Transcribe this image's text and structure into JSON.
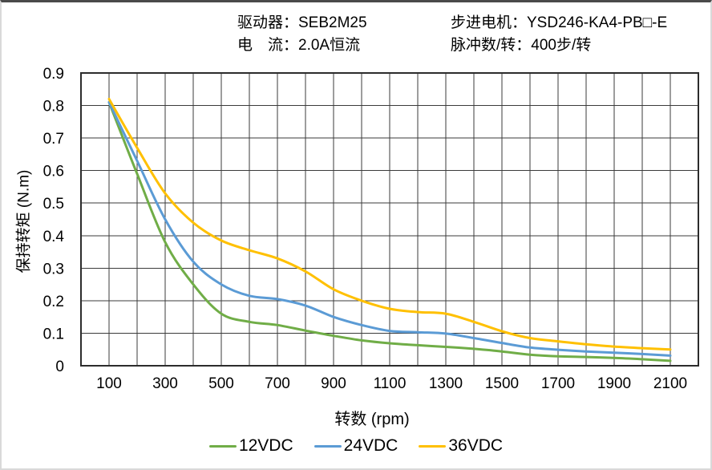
{
  "header": {
    "rows": [
      {
        "left": "驱动器：SEB2M25",
        "right": "步进电机：YSD246-KA4-PB□-E"
      },
      {
        "left": "电　流：2.0A恒流",
        "right": "脉冲数/转：400步/转"
      }
    ]
  },
  "chart_data": {
    "type": "line",
    "title": "",
    "xlabel": "转数 (rpm)",
    "ylabel": "保持转矩 (N.m)",
    "x_range": [
      0,
      2200
    ],
    "y_range": [
      0,
      0.9
    ],
    "x_grid_step": 100,
    "y_grid_step": 0.1,
    "grid": true,
    "legend_position": "bottom",
    "x_tick_labels": [
      "100",
      "300",
      "500",
      "700",
      "900",
      "1100",
      "1300",
      "1500",
      "1700",
      "1900",
      "2100"
    ],
    "y_tick_labels": [
      "0",
      "0.1",
      "0.2",
      "0.3",
      "0.4",
      "0.5",
      "0.6",
      "0.7",
      "0.8",
      "0.9"
    ],
    "x": [
      100,
      200,
      300,
      400,
      500,
      600,
      700,
      800,
      900,
      1000,
      1100,
      1200,
      1300,
      1400,
      1500,
      1600,
      1700,
      1800,
      1900,
      2000,
      2100
    ],
    "series": [
      {
        "name": "12VDC",
        "color": "#70AD47",
        "values": [
          0.81,
          0.59,
          0.38,
          0.25,
          0.16,
          0.135,
          0.125,
          0.108,
          0.092,
          0.078,
          0.069,
          0.063,
          0.058,
          0.052,
          0.044,
          0.034,
          0.029,
          0.027,
          0.024,
          0.02,
          0.015
        ]
      },
      {
        "name": "24VDC",
        "color": "#5B9BD5",
        "values": [
          0.81,
          0.63,
          0.45,
          0.32,
          0.25,
          0.215,
          0.205,
          0.185,
          0.15,
          0.125,
          0.107,
          0.103,
          0.099,
          0.085,
          0.07,
          0.056,
          0.049,
          0.044,
          0.04,
          0.036,
          0.031
        ]
      },
      {
        "name": "36VDC",
        "color": "#FFC000",
        "values": [
          0.82,
          0.67,
          0.53,
          0.44,
          0.385,
          0.355,
          0.33,
          0.29,
          0.235,
          0.2,
          0.175,
          0.165,
          0.16,
          0.135,
          0.106,
          0.085,
          0.075,
          0.066,
          0.059,
          0.054,
          0.05
        ]
      }
    ]
  }
}
